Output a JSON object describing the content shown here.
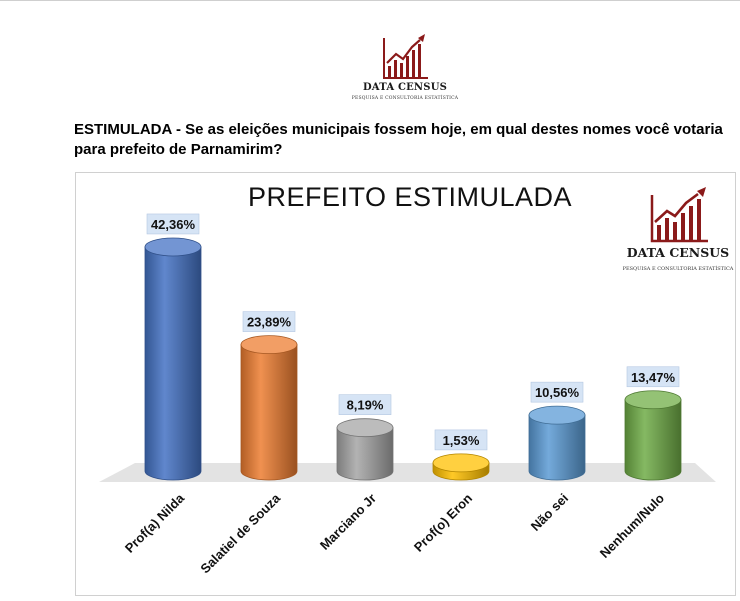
{
  "header": {
    "brand_name": "DATA CENSUS",
    "brand_tagline": "PESQUISA E CONSULTORIA ESTATÍSTICA",
    "question": "ESTIMULADA - Se as eleições municipais fossem hoje, em qual destes nomes você votaria para prefeito de Parnamirim?"
  },
  "chart_logo": {
    "name": "DATA CENSUS",
    "tagline": "PESQUISA E CONSULTORIA ESTATÍSTICA"
  },
  "colors": {
    "brand_red": "#8b1a1a"
  },
  "chart_data": {
    "type": "bar",
    "title": "PREFEITO ESTIMULADA",
    "categories": [
      "Prof(a) Nilda",
      "Salatiel de Souza",
      "Marciano Jr",
      "Prof(o) Eron",
      "Não sei",
      "Nenhum/Nulo"
    ],
    "values": [
      42.36,
      23.89,
      8.19,
      1.53,
      10.56,
      13.47
    ],
    "value_labels": [
      "42,36%",
      "23,89%",
      "8,19%",
      "1,53%",
      "10,56%",
      "13,47%"
    ],
    "colors": [
      "#4472c4",
      "#ed7d31",
      "#a5a5a5",
      "#ffc000",
      "#5b9bd5",
      "#70ad47"
    ],
    "unit": "%",
    "ylim": [
      0,
      45
    ],
    "grid": false,
    "style": "3d-cylinder"
  }
}
